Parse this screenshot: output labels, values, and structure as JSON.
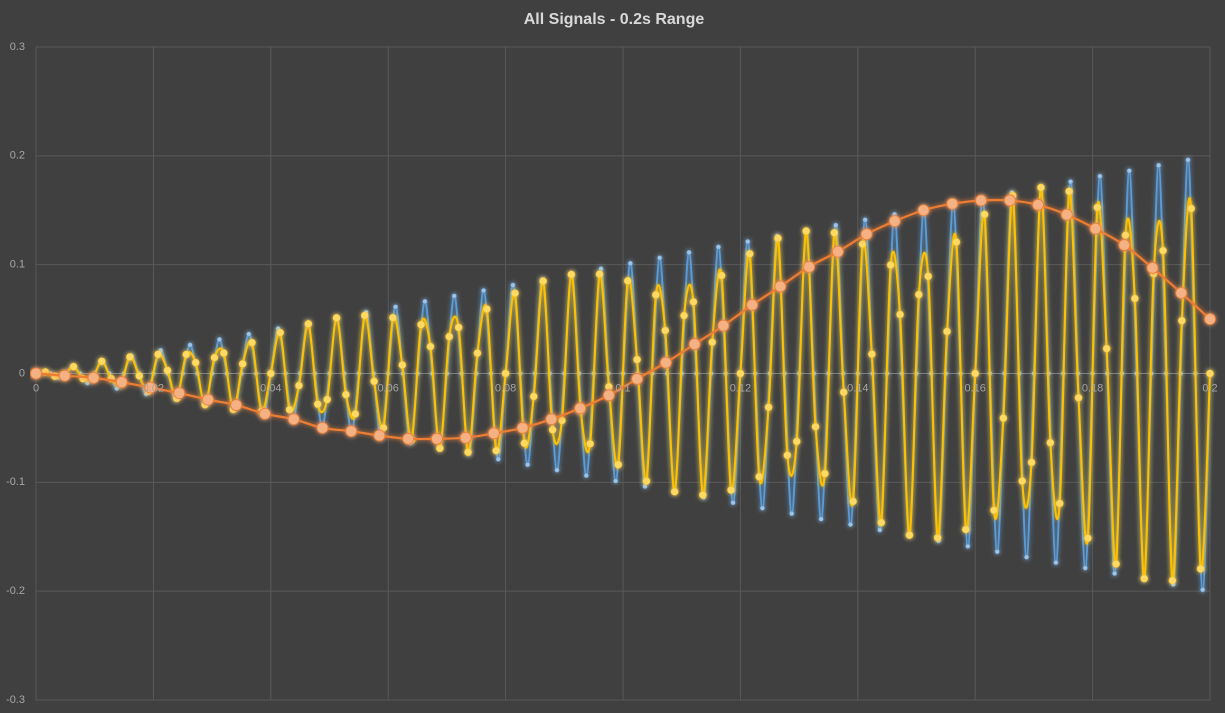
{
  "chart_data": {
    "type": "line",
    "title": "All Signals - 0.2s Range",
    "xlim": [
      0,
      0.2
    ],
    "ylim": [
      -0.3,
      0.3
    ],
    "xticks": [
      0,
      0.02,
      0.04,
      0.06,
      0.08,
      0.1,
      0.12,
      0.14,
      0.16,
      0.18,
      0.2
    ],
    "yticks": [
      -0.3,
      -0.2,
      -0.1,
      0,
      0.1,
      0.2,
      0.3
    ],
    "grid": true,
    "smooth": true,
    "series": [
      {
        "color": "#5b9bd5",
        "marker_color": "#9dc3e6",
        "x": [
          0,
          0.00125,
          0.0025,
          0.00375,
          0.005,
          0.00625,
          0.0075,
          0.00875,
          0.01,
          0.01125,
          0.0125,
          0.01375,
          0.015,
          0.01625,
          0.0175,
          0.01875,
          0.02,
          0.02125,
          0.0225,
          0.02375,
          0.025,
          0.02625,
          0.0275,
          0.02875,
          0.03,
          0.03125,
          0.0325,
          0.03375,
          0.035,
          0.03625,
          0.0375,
          0.03875,
          0.04,
          0.04125,
          0.0425,
          0.04375,
          0.045,
          0.04625,
          0.0475,
          0.04875,
          0.05,
          0.05125,
          0.0525,
          0.05375,
          0.055,
          0.05625,
          0.0575,
          0.05875,
          0.06,
          0.06125,
          0.0625,
          0.06375,
          0.065,
          0.06625,
          0.0675,
          0.06875,
          0.07,
          0.07125,
          0.0725,
          0.07375,
          0.075,
          0.07625,
          0.0775,
          0.07875,
          0.08,
          0.08125,
          0.0825,
          0.08375,
          0.085,
          0.08625,
          0.0875,
          0.08875,
          0.09,
          0.09125,
          0.0925,
          0.09375,
          0.095,
          0.09625,
          0.0975,
          0.09875,
          0.1,
          0.10125,
          0.1025,
          0.10375,
          0.105,
          0.10625,
          0.1075,
          0.10875,
          0.11,
          0.11125,
          0.1125,
          0.11375,
          0.115,
          0.11625,
          0.1175,
          0.11875,
          0.12,
          0.12125,
          0.1225,
          0.12375,
          0.125,
          0.12625,
          0.1275,
          0.12875,
          0.13,
          0.13125,
          0.1325,
          0.13375,
          0.135,
          0.13625,
          0.1375,
          0.13875,
          0.14,
          0.14125,
          0.1425,
          0.14375,
          0.145,
          0.14625,
          0.1475,
          0.14875,
          0.15,
          0.15125,
          0.1525,
          0.15375,
          0.155,
          0.15625,
          0.1575,
          0.15875,
          0.16,
          0.16125,
          0.1625,
          0.16375,
          0.165,
          0.16625,
          0.1675,
          0.16875,
          0.17,
          0.17125,
          0.1725,
          0.17375,
          0.175,
          0.17625,
          0.1775,
          0.17875,
          0.18,
          0.18125,
          0.1825,
          0.18375,
          0.185,
          0.18625,
          0.1875,
          0.18875,
          0.19,
          0.19125,
          0.1925,
          0.19375,
          0.195,
          0.19625,
          0.1975,
          0.19875,
          0.2
        ],
        "values": [
          0,
          0.00125,
          0,
          -0.00375,
          0,
          0.00625,
          0,
          -0.00875,
          0,
          0.01125,
          0,
          -0.01375,
          0,
          0.01625,
          0,
          -0.01875,
          0,
          0.02125,
          0,
          -0.02375,
          0,
          0.02625,
          0,
          -0.02875,
          0,
          0.03125,
          0,
          -0.03375,
          0,
          0.03625,
          0,
          -0.03875,
          0,
          0.04125,
          0,
          -0.04375,
          0,
          0.04625,
          0,
          -0.04875,
          0,
          0.05125,
          0,
          -0.05375,
          0,
          0.05625,
          0,
          -0.05875,
          0,
          0.06125,
          0,
          -0.06375,
          0,
          0.06625,
          0,
          -0.06875,
          0,
          0.07125,
          0,
          -0.07375,
          0,
          0.07625,
          0,
          -0.07875,
          0,
          0.08125,
          0,
          -0.08375,
          0,
          0.08625,
          0,
          -0.08875,
          0,
          0.09125,
          0,
          -0.09375,
          0,
          0.09625,
          0,
          -0.09875,
          0,
          0.10125,
          0,
          -0.10375,
          0,
          0.10625,
          0,
          -0.10875,
          0,
          0.11125,
          0,
          -0.11375,
          0,
          0.11625,
          0,
          -0.11875,
          0,
          0.12125,
          0,
          -0.12375,
          0,
          0.12625,
          0,
          -0.12875,
          0,
          0.13125,
          0,
          -0.13375,
          0,
          0.13625,
          0,
          -0.13875,
          0,
          0.14125,
          0,
          -0.14375,
          0,
          0.14625,
          0,
          -0.14875,
          0,
          0.15125,
          0,
          -0.15375,
          0,
          0.15625,
          0,
          -0.15875,
          0,
          0.16125,
          0,
          -0.16375,
          0,
          0.16625,
          0,
          -0.16875,
          0,
          0.17125,
          0,
          -0.17375,
          0,
          0.17625,
          0,
          -0.17875,
          0,
          0.18125,
          0,
          -0.18375,
          0,
          0.18625,
          0,
          -0.18875,
          0,
          0.19125,
          0,
          -0.19375,
          0,
          0.19625,
          0,
          -0.19875,
          0
        ]
      },
      {
        "color": "#ffc000",
        "marker_color": "#ffd966",
        "x": [
          0,
          0.0016,
          0.0032,
          0.0048,
          0.0064,
          0.008,
          0.0096,
          0.0112,
          0.0128,
          0.0144,
          0.016,
          0.0176,
          0.0192,
          0.0208,
          0.0224,
          0.024,
          0.0256,
          0.0272,
          0.0288,
          0.0304,
          0.032,
          0.0336,
          0.0352,
          0.0368,
          0.0384,
          0.04,
          0.0416,
          0.0432,
          0.0448,
          0.0464,
          0.048,
          0.0496,
          0.0512,
          0.0528,
          0.0544,
          0.056,
          0.0576,
          0.0592,
          0.0608,
          0.0624,
          0.064,
          0.0656,
          0.0672,
          0.0688,
          0.0704,
          0.072,
          0.0736,
          0.0752,
          0.0768,
          0.0784,
          0.08,
          0.0816,
          0.0832,
          0.0848,
          0.0864,
          0.088,
          0.0896,
          0.0912,
          0.0928,
          0.0944,
          0.096,
          0.0976,
          0.0992,
          0.1008,
          0.1024,
          0.104,
          0.1056,
          0.1072,
          0.1088,
          0.1104,
          0.112,
          0.1136,
          0.1152,
          0.1168,
          0.1184,
          0.12,
          0.1216,
          0.1232,
          0.1248,
          0.1264,
          0.128,
          0.1296,
          0.1312,
          0.1328,
          0.1344,
          0.136,
          0.1376,
          0.1392,
          0.1408,
          0.1424,
          0.144,
          0.1456,
          0.1472,
          0.1488,
          0.1504,
          0.152,
          0.1536,
          0.1552,
          0.1568,
          0.1584,
          0.16,
          0.1616,
          0.1632,
          0.1648,
          0.1664,
          0.168,
          0.1696,
          0.1712,
          0.1728,
          0.1744,
          0.176,
          0.1776,
          0.1792,
          0.1808,
          0.1824,
          0.184,
          0.1856,
          0.1872,
          0.1888,
          0.1904,
          0.192,
          0.1936,
          0.1952,
          0.1968,
          0.1984,
          0.2
        ],
        "values": [
          0,
          0.0014,
          -0.0025,
          -0.0012,
          0.0063,
          -0.0047,
          -0.0046,
          0.0112,
          -0.0047,
          -0.0099,
          0.0152,
          -0.0022,
          -0.0162,
          0.0176,
          0.0028,
          -0.0228,
          0.0175,
          0.01,
          -0.0287,
          0.0146,
          0.0188,
          -0.033,
          0.0088,
          0.0284,
          -0.0347,
          0,
          0.0376,
          -0.0333,
          -0.0111,
          0.0456,
          -0.0282,
          -0.0239,
          0.0511,
          -0.0194,
          -0.0372,
          0.0533,
          -0.0072,
          -0.05,
          0.0513,
          0.0078,
          -0.0609,
          0.0449,
          0.0247,
          -0.0687,
          0.0339,
          0.0423,
          -0.0723,
          0.0187,
          0.0592,
          -0.0709,
          0,
          0.0738,
          -0.0641,
          -0.0211,
          0.0849,
          -0.0517,
          -0.0432,
          0.091,
          -0.0342,
          -0.0646,
          0.0913,
          -0.0122,
          -0.0838,
          0.0851,
          0.0128,
          -0.0989,
          0.0723,
          0.0395,
          -0.1086,
          0.0532,
          0.0658,
          -0.1116,
          0.0287,
          0.09,
          -0.1071,
          0,
          0.11,
          -0.0949,
          -0.031,
          0.1242,
          -0.0752,
          -0.0624,
          0.1309,
          -0.0489,
          -0.092,
          0.1293,
          -0.0172,
          -0.1175,
          0.1189,
          0.0178,
          -0.137,
          0.0997,
          0.0542,
          -0.1485,
          0.0725,
          0.0893,
          -0.1509,
          0.0386,
          0.1208,
          -0.1433,
          0,
          0.1462,
          -0.1257,
          -0.041,
          0.1635,
          -0.0988,
          -0.0817,
          0.1709,
          -0.0636,
          -0.1194,
          0.1674,
          -0.0223,
          -0.1513,
          0.1526,
          0.0229,
          -0.175,
          0.127,
          0.0689,
          -0.1884,
          0.0917,
          0.1129,
          -0.1902,
          0.0485,
          0.1516,
          -0.1795,
          0
        ]
      },
      {
        "color": "#ed7d31",
        "marker_color": "#f4b183",
        "x": [
          0,
          0.0049,
          0.0098,
          0.0146,
          0.0195,
          0.0244,
          0.0293,
          0.0341,
          0.039,
          0.0439,
          0.0488,
          0.0537,
          0.0585,
          0.0634,
          0.0683,
          0.0732,
          0.078,
          0.0829,
          0.0878,
          0.0927,
          0.0976,
          0.1024,
          0.1073,
          0.1122,
          0.1171,
          0.122,
          0.1268,
          0.1317,
          0.1366,
          0.1415,
          0.1463,
          0.1512,
          0.1561,
          0.161,
          0.1659,
          0.1707,
          0.1756,
          0.1805,
          0.1854,
          0.1902,
          0.1951,
          0.2
        ],
        "values": [
          0,
          -0.002,
          -0.004,
          -0.008,
          -0.013,
          -0.018,
          -0.024,
          -0.029,
          -0.037,
          -0.042,
          -0.05,
          -0.053,
          -0.057,
          -0.06,
          -0.06,
          -0.059,
          -0.055,
          -0.05,
          -0.042,
          -0.032,
          -0.02,
          -0.005,
          0.01,
          0.027,
          0.044,
          0.063,
          0.08,
          0.098,
          0.112,
          0.128,
          0.14,
          0.15,
          0.156,
          0.159,
          0.159,
          0.155,
          0.146,
          0.133,
          0.118,
          0.097,
          0.074,
          0.05
        ]
      }
    ]
  }
}
